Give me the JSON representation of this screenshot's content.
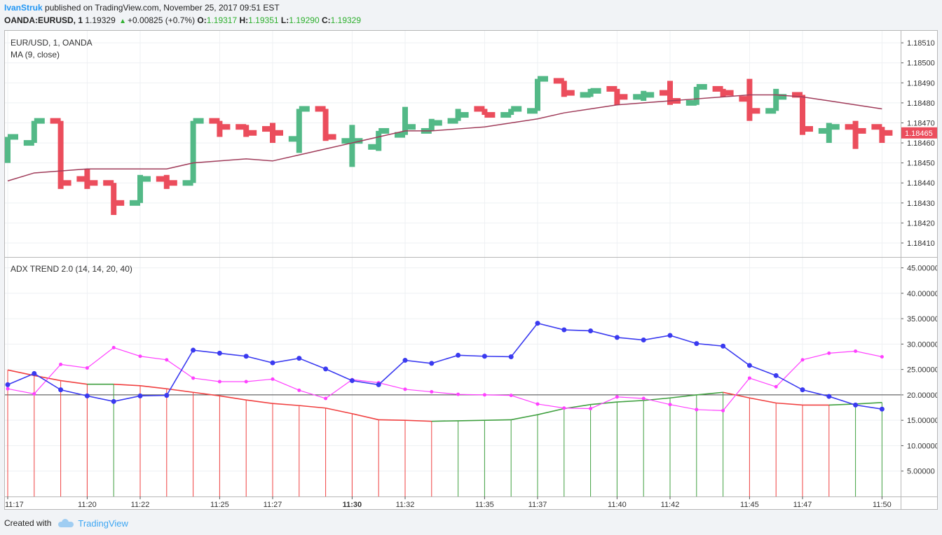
{
  "header": {
    "author": "IvanStruk",
    "published": "published on TradingView.com, November 25, 2017 09:51 EST",
    "symbol": "OANDA:EURUSD, 1",
    "price": "1.19329",
    "change_icon": "triangle-up-icon",
    "change": "+0.00825 (+0.7%)",
    "o_label": "O:",
    "o_value": "1.19317",
    "h_label": "H:",
    "h_value": "1.19351",
    "l_label": "L:",
    "l_value": "1.19290",
    "c_label": "C:",
    "c_value": "1.19329"
  },
  "footer": {
    "created_with": "Created with",
    "brand": "TradingView",
    "brand_icon": "tradingview-cloud-icon"
  },
  "colors": {
    "up": "#53b987",
    "down": "#eb4d5c",
    "ma": "#a03c5a",
    "adx_blue": "#3a3af0",
    "adx_magenta": "#ff40ff",
    "adx_trend_red": "#f04040",
    "adx_trend_green": "#40a040",
    "price_tag": "#eb4d5c"
  },
  "chart_data": [
    {
      "type": "candlestick",
      "title": "EUR/USD, 1, OANDA",
      "indicator": "MA (9, close)",
      "ylim": [
        1.18403,
        1.18516
      ],
      "y_ticks": [
        "1.18510",
        "1.18500",
        "1.18490",
        "1.18480",
        "1.18470",
        "1.18460",
        "1.18450",
        "1.18440",
        "1.18430",
        "1.18420",
        "1.18410"
      ],
      "last_price": "1.18465",
      "candles": [
        {
          "o": 1.18455,
          "h": 1.18463,
          "l": 1.1845,
          "c": 1.18463
        },
        {
          "o": 1.1846,
          "h": 1.18471,
          "l": 1.1846,
          "c": 1.18471
        },
        {
          "o": 1.18471,
          "h": 1.18471,
          "l": 1.18437,
          "c": 1.1844
        },
        {
          "o": 1.18442,
          "h": 1.18447,
          "l": 1.18437,
          "c": 1.1844
        },
        {
          "o": 1.1844,
          "h": 1.1844,
          "l": 1.18424,
          "c": 1.1843
        },
        {
          "o": 1.1843,
          "h": 1.18444,
          "l": 1.1843,
          "c": 1.18442
        },
        {
          "o": 1.18442,
          "h": 1.18444,
          "l": 1.18437,
          "c": 1.1844
        },
        {
          "o": 1.1844,
          "h": 1.18471,
          "l": 1.1844,
          "c": 1.18471
        },
        {
          "o": 1.18471,
          "h": 1.18471,
          "l": 1.18463,
          "c": 1.18468
        },
        {
          "o": 1.18468,
          "h": 1.18469,
          "l": 1.18463,
          "c": 1.18465
        },
        {
          "o": 1.18467,
          "h": 1.1847,
          "l": 1.1846,
          "c": 1.18465
        },
        {
          "o": 1.18462,
          "h": 1.18477,
          "l": 1.18455,
          "c": 1.18477
        },
        {
          "o": 1.18477,
          "h": 1.18477,
          "l": 1.18461,
          "c": 1.18463
        },
        {
          "o": 1.18461,
          "h": 1.18469,
          "l": 1.18448,
          "c": 1.18461
        },
        {
          "o": 1.18458,
          "h": 1.18466,
          "l": 1.18456,
          "c": 1.18466
        },
        {
          "o": 1.18464,
          "h": 1.18478,
          "l": 1.18464,
          "c": 1.18468
        },
        {
          "o": 1.18466,
          "h": 1.18472,
          "l": 1.18466,
          "c": 1.1847
        },
        {
          "o": 1.18471,
          "h": 1.18477,
          "l": 1.18471,
          "c": 1.18474
        },
        {
          "o": 1.18477,
          "h": 1.18477,
          "l": 1.18474,
          "c": 1.18474
        },
        {
          "o": 1.18474,
          "h": 1.18477,
          "l": 1.18474,
          "c": 1.18477
        },
        {
          "o": 1.18476,
          "h": 1.18492,
          "l": 1.18476,
          "c": 1.18492
        },
        {
          "o": 1.18491,
          "h": 1.18491,
          "l": 1.18483,
          "c": 1.18485
        },
        {
          "o": 1.18484,
          "h": 1.18487,
          "l": 1.18483,
          "c": 1.18486
        },
        {
          "o": 1.18487,
          "h": 1.18487,
          "l": 1.18479,
          "c": 1.18483
        },
        {
          "o": 1.18483,
          "h": 1.18486,
          "l": 1.18481,
          "c": 1.18484
        },
        {
          "o": 1.18485,
          "h": 1.18491,
          "l": 1.18479,
          "c": 1.18481
        },
        {
          "o": 1.1848,
          "h": 1.18488,
          "l": 1.18479,
          "c": 1.18488
        },
        {
          "o": 1.18487,
          "h": 1.18487,
          "l": 1.18483,
          "c": 1.18485
        },
        {
          "o": 1.18482,
          "h": 1.18492,
          "l": 1.18471,
          "c": 1.18476
        },
        {
          "o": 1.18476,
          "h": 1.18487,
          "l": 1.18476,
          "c": 1.18483
        },
        {
          "o": 1.18484,
          "h": 1.18484,
          "l": 1.18464,
          "c": 1.18467
        },
        {
          "o": 1.18466,
          "h": 1.1847,
          "l": 1.1846,
          "c": 1.18468
        },
        {
          "o": 1.18468,
          "h": 1.18471,
          "l": 1.18457,
          "c": 1.18466
        },
        {
          "o": 1.18468,
          "h": 1.18468,
          "l": 1.1846,
          "c": 1.18465
        }
      ],
      "ma": [
        1.18441,
        1.18445,
        1.18446,
        1.18447,
        1.18447,
        1.18447,
        1.18447,
        1.1845,
        1.18451,
        1.18452,
        1.18451,
        1.18454,
        1.18457,
        1.1846,
        1.18463,
        1.18466,
        1.18466,
        1.18467,
        1.18468,
        1.1847,
        1.18472,
        1.18475,
        1.18477,
        1.18479,
        1.1848,
        1.18481,
        1.18482,
        1.18483,
        1.18484,
        1.18484,
        1.18483,
        1.18481,
        1.18479,
        1.18477
      ]
    },
    {
      "type": "line",
      "title": "ADX TREND 2.0 (14, 14, 20, 40)",
      "ylim": [
        0,
        47
      ],
      "y_ticks": [
        "45.00000",
        "40.00000",
        "35.00000",
        "30.00000",
        "25.00000",
        "20.00000",
        "15.00000",
        "10.00000",
        "5.00000"
      ],
      "threshold": 20,
      "x_ticks": [
        "11:17",
        "11:20",
        "11:22",
        "11:25",
        "11:27",
        "11:30",
        "11:32",
        "11:35",
        "11:37",
        "11:40",
        "11:42",
        "11:45",
        "11:47",
        "11:50"
      ],
      "x_tick_index": [
        0,
        3,
        5,
        8,
        10,
        13,
        15,
        18,
        20,
        23,
        25,
        28,
        30,
        33
      ],
      "bold_tick": "11:30",
      "series": [
        {
          "color": "blue",
          "values": [
            22.0,
            24.2,
            21.0,
            19.8,
            18.7,
            19.8,
            19.9,
            28.8,
            28.2,
            27.6,
            26.3,
            27.2,
            25.1,
            22.8,
            22.0,
            26.8,
            26.2,
            27.8,
            27.6,
            27.5,
            34.1,
            32.8,
            32.6,
            31.3,
            30.8,
            31.7,
            30.1,
            29.6,
            25.8,
            23.8,
            21.0,
            19.7,
            18.0,
            17.2
          ]
        },
        {
          "color": "magenta",
          "values": [
            21.2,
            20.2,
            26.0,
            25.3,
            29.3,
            27.6,
            26.9,
            23.3,
            22.6,
            22.6,
            23.1,
            20.9,
            19.3,
            23.0,
            22.4,
            21.1,
            20.6,
            20.1,
            20.0,
            19.9,
            18.2,
            17.4,
            17.3,
            19.6,
            19.3,
            18.1,
            17.1,
            16.9,
            23.3,
            21.6,
            26.9,
            28.2,
            28.6,
            27.5
          ]
        },
        {
          "color": "trend",
          "values": [
            24.9,
            23.8,
            22.8,
            22.1,
            22.1,
            21.8,
            21.2,
            20.5,
            19.8,
            19.0,
            18.3,
            17.9,
            17.4,
            16.3,
            15.1,
            15.0,
            14.8,
            14.9,
            15.0,
            15.1,
            16.1,
            17.3,
            18.1,
            18.6,
            18.9,
            19.4,
            20.0,
            20.5,
            19.4,
            18.4,
            18.0,
            18.0,
            18.2,
            18.5
          ]
        }
      ],
      "trend_up": [
        false,
        false,
        false,
        false,
        true,
        false,
        false,
        false,
        false,
        false,
        false,
        false,
        false,
        false,
        false,
        false,
        false,
        true,
        true,
        true,
        true,
        true,
        true,
        true,
        true,
        true,
        true,
        true,
        false,
        false,
        false,
        false,
        true,
        true
      ]
    }
  ]
}
